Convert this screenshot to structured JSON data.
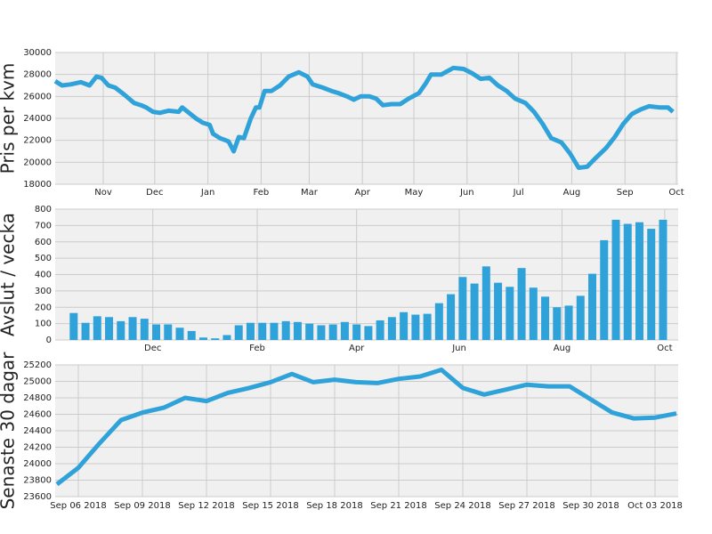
{
  "chart_data": [
    {
      "type": "line",
      "ylabel": "Pris per kvm",
      "color": "#30a2da",
      "grid": true,
      "xlim": [
        3,
        366
      ],
      "ylim": [
        18000,
        30000
      ],
      "yticks": [
        18000,
        20000,
        22000,
        24000,
        26000,
        28000,
        30000
      ],
      "xticks": [
        {
          "value": 31,
          "label": "Nov"
        },
        {
          "value": 61,
          "label": "Dec"
        },
        {
          "value": 92,
          "label": "Jan"
        },
        {
          "value": 123,
          "label": "Feb"
        },
        {
          "value": 151,
          "label": "Mar"
        },
        {
          "value": 182,
          "label": "Apr"
        },
        {
          "value": 212,
          "label": "May"
        },
        {
          "value": 243,
          "label": "Jun"
        },
        {
          "value": 273,
          "label": "Jul"
        },
        {
          "value": 304,
          "label": "Aug"
        },
        {
          "value": 335,
          "label": "Sep"
        },
        {
          "value": 365,
          "label": "Oct"
        }
      ],
      "x": [
        3,
        7,
        12,
        18,
        23,
        27,
        30,
        34,
        38,
        43,
        49,
        53,
        56,
        60,
        64,
        69,
        75,
        77,
        81,
        85,
        89,
        93,
        95,
        99,
        104,
        107,
        110,
        113,
        117,
        120,
        122,
        125,
        129,
        134,
        139,
        145,
        150,
        153,
        159,
        164,
        168,
        173,
        177,
        181,
        186,
        190,
        194,
        199,
        204,
        209,
        215,
        219,
        222,
        228,
        235,
        241,
        246,
        251,
        256,
        261,
        266,
        271,
        277,
        282,
        287,
        292,
        298,
        303,
        308,
        313,
        318,
        324,
        329,
        334,
        339,
        344,
        349,
        355,
        360,
        363
      ],
      "values": [
        27400,
        27000,
        27100,
        27300,
        27000,
        27800,
        27700,
        27000,
        26800,
        26200,
        25400,
        25200,
        25000,
        24600,
        24500,
        24700,
        24600,
        25000,
        24500,
        24000,
        23600,
        23400,
        22600,
        22200,
        21900,
        21000,
        22300,
        22200,
        24000,
        25000,
        25000,
        26500,
        26500,
        27000,
        27800,
        28200,
        27800,
        27100,
        26800,
        26500,
        26300,
        26000,
        25700,
        26000,
        26000,
        25800,
        25200,
        25300,
        25300,
        25800,
        26300,
        27200,
        28000,
        28000,
        28600,
        28500,
        28100,
        27600,
        27700,
        27000,
        26500,
        25800,
        25400,
        24600,
        23500,
        22200,
        21800,
        20800,
        19500,
        19600,
        20400,
        21300,
        22300,
        23500,
        24400,
        24800,
        25100,
        25000,
        25000,
        24600
      ]
    },
    {
      "type": "bar",
      "ylabel": "Avslut / vecka",
      "color": "#30a2da",
      "grid": true,
      "xlim": [
        3,
        373
      ],
      "ylim": [
        0,
        800
      ],
      "yticks": [
        0,
        100,
        200,
        300,
        400,
        500,
        600,
        700,
        800
      ],
      "xticks": [
        {
          "value": 61,
          "label": "Dec"
        },
        {
          "value": 123,
          "label": "Feb"
        },
        {
          "value": 182,
          "label": "Apr"
        },
        {
          "value": 243,
          "label": "Jun"
        },
        {
          "value": 304,
          "label": "Aug"
        },
        {
          "value": 365,
          "label": "Oct"
        }
      ],
      "x": [
        14,
        21,
        28,
        35,
        42,
        49,
        56,
        63,
        70,
        77,
        84,
        91,
        98,
        105,
        112,
        119,
        126,
        133,
        140,
        147,
        154,
        161,
        168,
        175,
        182,
        189,
        196,
        203,
        210,
        217,
        224,
        231,
        238,
        245,
        252,
        259,
        266,
        273,
        280,
        287,
        294,
        301,
        308,
        315,
        322,
        329,
        336,
        343,
        350,
        357,
        364
      ],
      "values": [
        165,
        105,
        145,
        140,
        115,
        140,
        130,
        95,
        95,
        75,
        55,
        15,
        10,
        30,
        90,
        105,
        105,
        105,
        115,
        110,
        100,
        90,
        95,
        110,
        95,
        85,
        120,
        140,
        170,
        155,
        160,
        225,
        280,
        385,
        345,
        450,
        350,
        325,
        440,
        320,
        265,
        200,
        210,
        270,
        405,
        610,
        735,
        710,
        720,
        680,
        735
      ]
    },
    {
      "type": "line",
      "ylabel": "Senaste 30 dagar",
      "color": "#30a2da",
      "grid": true,
      "ylim": [
        23600,
        25200
      ],
      "yticks": [
        23600,
        23800,
        24000,
        24200,
        24400,
        24600,
        24800,
        25000,
        25200
      ],
      "categories": [
        null,
        "Sep 06 2018",
        null,
        null,
        "Sep 09 2018",
        null,
        null,
        "Sep 12 2018",
        null,
        null,
        "Sep 15 2018",
        null,
        null,
        "Sep 18 2018",
        null,
        null,
        "Sep 21 2018",
        null,
        null,
        "Sep 24 2018",
        null,
        null,
        "Sep 27 2018",
        null,
        null,
        "Sep 30 2018",
        null,
        null,
        "Oct 03 2018",
        null
      ],
      "values": [
        23750,
        23950,
        24250,
        24530,
        24620,
        24680,
        24800,
        24760,
        24860,
        24920,
        24990,
        25090,
        24990,
        25020,
        24990,
        24980,
        25030,
        25060,
        25140,
        24920,
        24840,
        24900,
        24960,
        24940,
        24940,
        24780,
        24620,
        24550,
        24560,
        24610
      ]
    }
  ]
}
